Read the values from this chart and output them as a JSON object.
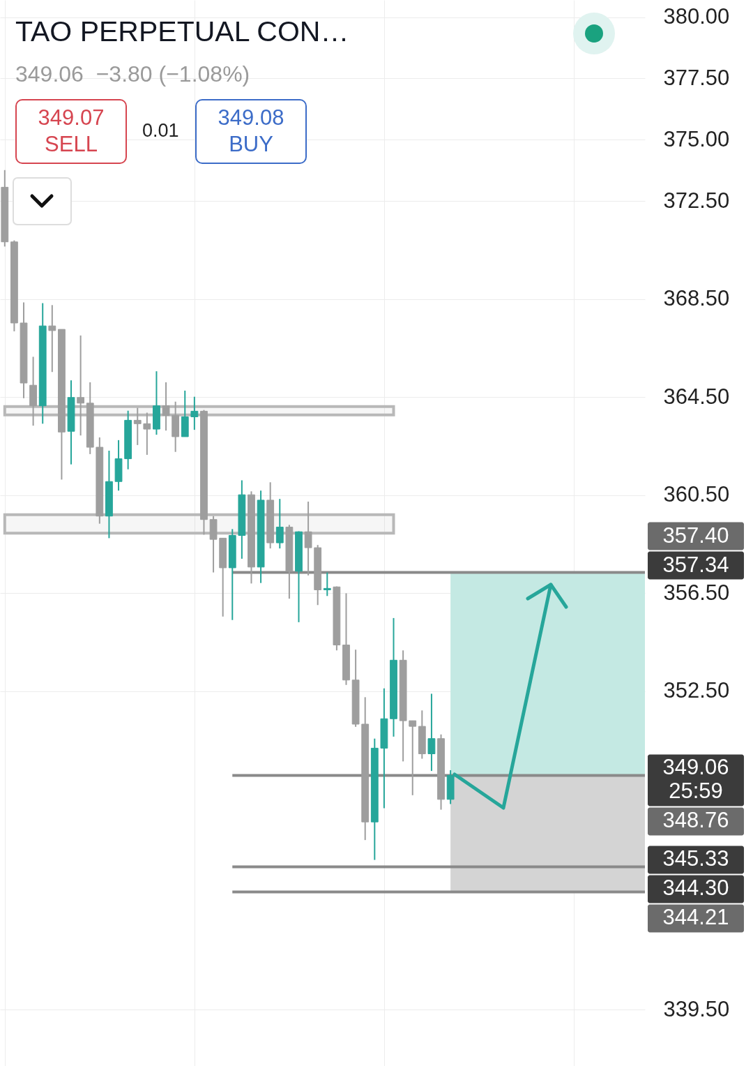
{
  "chart_data": {
    "type": "candlestick",
    "title": "TAO PERPETUAL CON…",
    "categories": [
      null,
      null,
      null,
      null,
      null,
      null,
      null,
      null,
      null,
      null,
      null,
      null,
      null,
      null,
      null,
      null,
      null,
      null,
      null,
      null,
      null,
      null,
      null,
      null,
      null,
      null,
      null,
      null,
      null,
      null,
      null,
      null,
      null,
      null,
      null,
      null,
      null,
      null,
      null,
      null,
      null,
      null,
      null,
      null,
      null,
      null,
      null,
      null,
      null,
      null,
      null,
      null,
      null,
      null,
      null,
      null,
      null,
      null,
      null,
      null,
      null,
      null,
      null,
      null,
      null,
      null,
      null,
      null
    ],
    "ohlc": [
      [
        373.06,
        373.76,
        370.64,
        370.83
      ],
      [
        370.83,
        370.89,
        367.18,
        367.52
      ],
      [
        367.52,
        368.36,
        364.45,
        365.07
      ],
      [
        364.98,
        366.14,
        363.33,
        364.14
      ],
      [
        364.14,
        368.33,
        363.41,
        367.4
      ],
      [
        367.4,
        368.25,
        365.52,
        367.21
      ],
      [
        367.26,
        367.26,
        361.13,
        363.07
      ],
      [
        363.1,
        365.18,
        361.75,
        364.48
      ],
      [
        364.48,
        367.01,
        362.93,
        364.25
      ],
      [
        364.25,
        365.1,
        362.17,
        362.45
      ],
      [
        362.45,
        362.85,
        359.33,
        359.64
      ],
      [
        359.64,
        362.31,
        358.74,
        361.05
      ],
      [
        361.05,
        362.74,
        360.68,
        361.98
      ],
      [
        361.98,
        363.94,
        361.55,
        363.55
      ],
      [
        363.55,
        364.06,
        362.54,
        363.41
      ],
      [
        363.41,
        363.86,
        362.14,
        363.19
      ],
      [
        363.19,
        365.55,
        362.96,
        364.14
      ],
      [
        364.14,
        365.1,
        363.13,
        363.75
      ],
      [
        363.75,
        364.31,
        362.26,
        362.88
      ],
      [
        362.88,
        364.76,
        362.88,
        363.69
      ],
      [
        363.69,
        364.51,
        363.16,
        363.92
      ],
      [
        363.92,
        363.97,
        358.88,
        359.5
      ],
      [
        359.5,
        359.64,
        357.34,
        358.69
      ],
      [
        358.74,
        358.74,
        355.54,
        357.53
      ],
      [
        357.53,
        359.11,
        355.4,
        358.85
      ],
      [
        358.85,
        361.1,
        357.9,
        360.51
      ],
      [
        360.51,
        360.65,
        356.89,
        357.56
      ],
      [
        357.56,
        360.68,
        356.91,
        360.29
      ],
      [
        360.29,
        361.02,
        358.32,
        358.55
      ],
      [
        358.55,
        360.34,
        358.32,
        359.19
      ],
      [
        359.19,
        359.28,
        356.27,
        357.39
      ],
      [
        357.39,
        359.02,
        355.31,
        359.0
      ],
      [
        359.0,
        360.23,
        357.22,
        358.35
      ],
      [
        358.35,
        358.46,
        356.01,
        356.63
      ],
      [
        356.63,
        357.34,
        356.38,
        356.69
      ],
      [
        356.75,
        356.77,
        354.16,
        354.38
      ],
      [
        354.38,
        356.49,
        352.75,
        352.95
      ],
      [
        352.95,
        354.19,
        351.04,
        351.15
      ],
      [
        351.15,
        352.25,
        346.42,
        347.16
      ],
      [
        347.16,
        350.56,
        345.61,
        350.17
      ],
      [
        350.17,
        352.61,
        347.72,
        351.37
      ],
      [
        351.37,
        355.48,
        350.64,
        353.76
      ],
      [
        353.76,
        354.16,
        349.63,
        351.29
      ],
      [
        351.29,
        351.29,
        348.25,
        351.06
      ],
      [
        351.06,
        351.71,
        349.74,
        349.94
      ],
      [
        349.94,
        352.39,
        349.24,
        350.56
      ],
      [
        350.56,
        350.73,
        347.66,
        348.08
      ],
      [
        348.08,
        349.27,
        347.89,
        349.06
      ],
      null,
      null,
      null,
      null,
      null,
      null,
      null,
      null,
      null,
      null,
      null,
      null,
      null,
      null,
      null,
      null,
      null,
      null,
      null,
      null
    ],
    "colors": [
      "#9e9e9e",
      "#9e9e9e",
      "#9e9e9e",
      "#9e9e9e",
      "#26a69a",
      "#9e9e9e",
      "#9e9e9e",
      "#26a69a",
      "#9e9e9e",
      "#9e9e9e",
      "#9e9e9e",
      "#26a69a",
      "#26a69a",
      "#26a69a",
      "#9e9e9e",
      "#9e9e9e",
      "#26a69a",
      "#9e9e9e",
      "#9e9e9e",
      "#26a69a",
      "#26a69a",
      "#9e9e9e",
      "#9e9e9e",
      "#9e9e9e",
      "#26a69a",
      "#26a69a",
      "#9e9e9e",
      "#26a69a",
      "#9e9e9e",
      "#26a69a",
      "#9e9e9e",
      "#26a69a",
      "#9e9e9e",
      "#9e9e9e",
      "#26a69a",
      "#9e9e9e",
      "#9e9e9e",
      "#9e9e9e",
      "#9e9e9e",
      "#26a69a",
      "#26a69a",
      "#26a69a",
      "#9e9e9e",
      "#9e9e9e",
      "#9e9e9e",
      "#26a69a",
      "#9e9e9e",
      "#26a69a",
      null,
      null,
      null,
      null,
      null,
      null,
      null,
      null,
      null,
      null,
      null,
      null,
      null,
      null,
      null,
      null,
      null,
      null,
      null,
      null
    ],
    "ylim": [
      337.2,
      380.7
    ],
    "yticks": [
      {
        "value": 380,
        "label": "380.00"
      },
      {
        "value": 377.5,
        "label": "377.50"
      },
      {
        "value": 375,
        "label": "375.00"
      },
      {
        "value": 372.5,
        "label": "372.50"
      },
      {
        "value": 368.5,
        "label": "368.50"
      },
      {
        "value": 364.5,
        "label": "364.50"
      },
      {
        "value": 360.5,
        "label": "360.50"
      },
      {
        "value": 356.5,
        "label": "356.50"
      },
      {
        "value": 352.5,
        "label": "352.50"
      },
      {
        "value": 339.5,
        "label": "339.50"
      }
    ],
    "grid": true,
    "tick_labels": "y",
    "bands": [
      {
        "axis": "y",
        "from": 349.06,
        "to": 357.34,
        "color": "#c4e9e3"
      },
      {
        "axis": "y",
        "from": 344.3,
        "to": 349.06,
        "color": "#d4d4d4"
      },
      {
        "axis": "y",
        "from": 363.77,
        "to": 364.11
      },
      {
        "axis": "y",
        "from": 358.94,
        "to": 359.7
      }
    ],
    "ref_lines": [
      {
        "axis": "y",
        "value": 357.34,
        "label": "357.34",
        "color": "#8a8a8a"
      },
      {
        "axis": "y",
        "value": 349.06,
        "label": "349.06\n25:59",
        "color": "#8a8a8a"
      },
      {
        "axis": "y",
        "value": 345.33,
        "label": "345.33",
        "color": "#8a8a8a"
      },
      {
        "axis": "y",
        "value": 344.3,
        "label": "344.30",
        "color": "#8a8a8a"
      }
    ],
    "annotations": [
      "349.06  −3.80 (−1.08%)",
      "349.07",
      "SELL",
      "0.01",
      "349.08",
      "BUY",
      "357.40",
      "348.76",
      "344.21"
    ]
  }
}
